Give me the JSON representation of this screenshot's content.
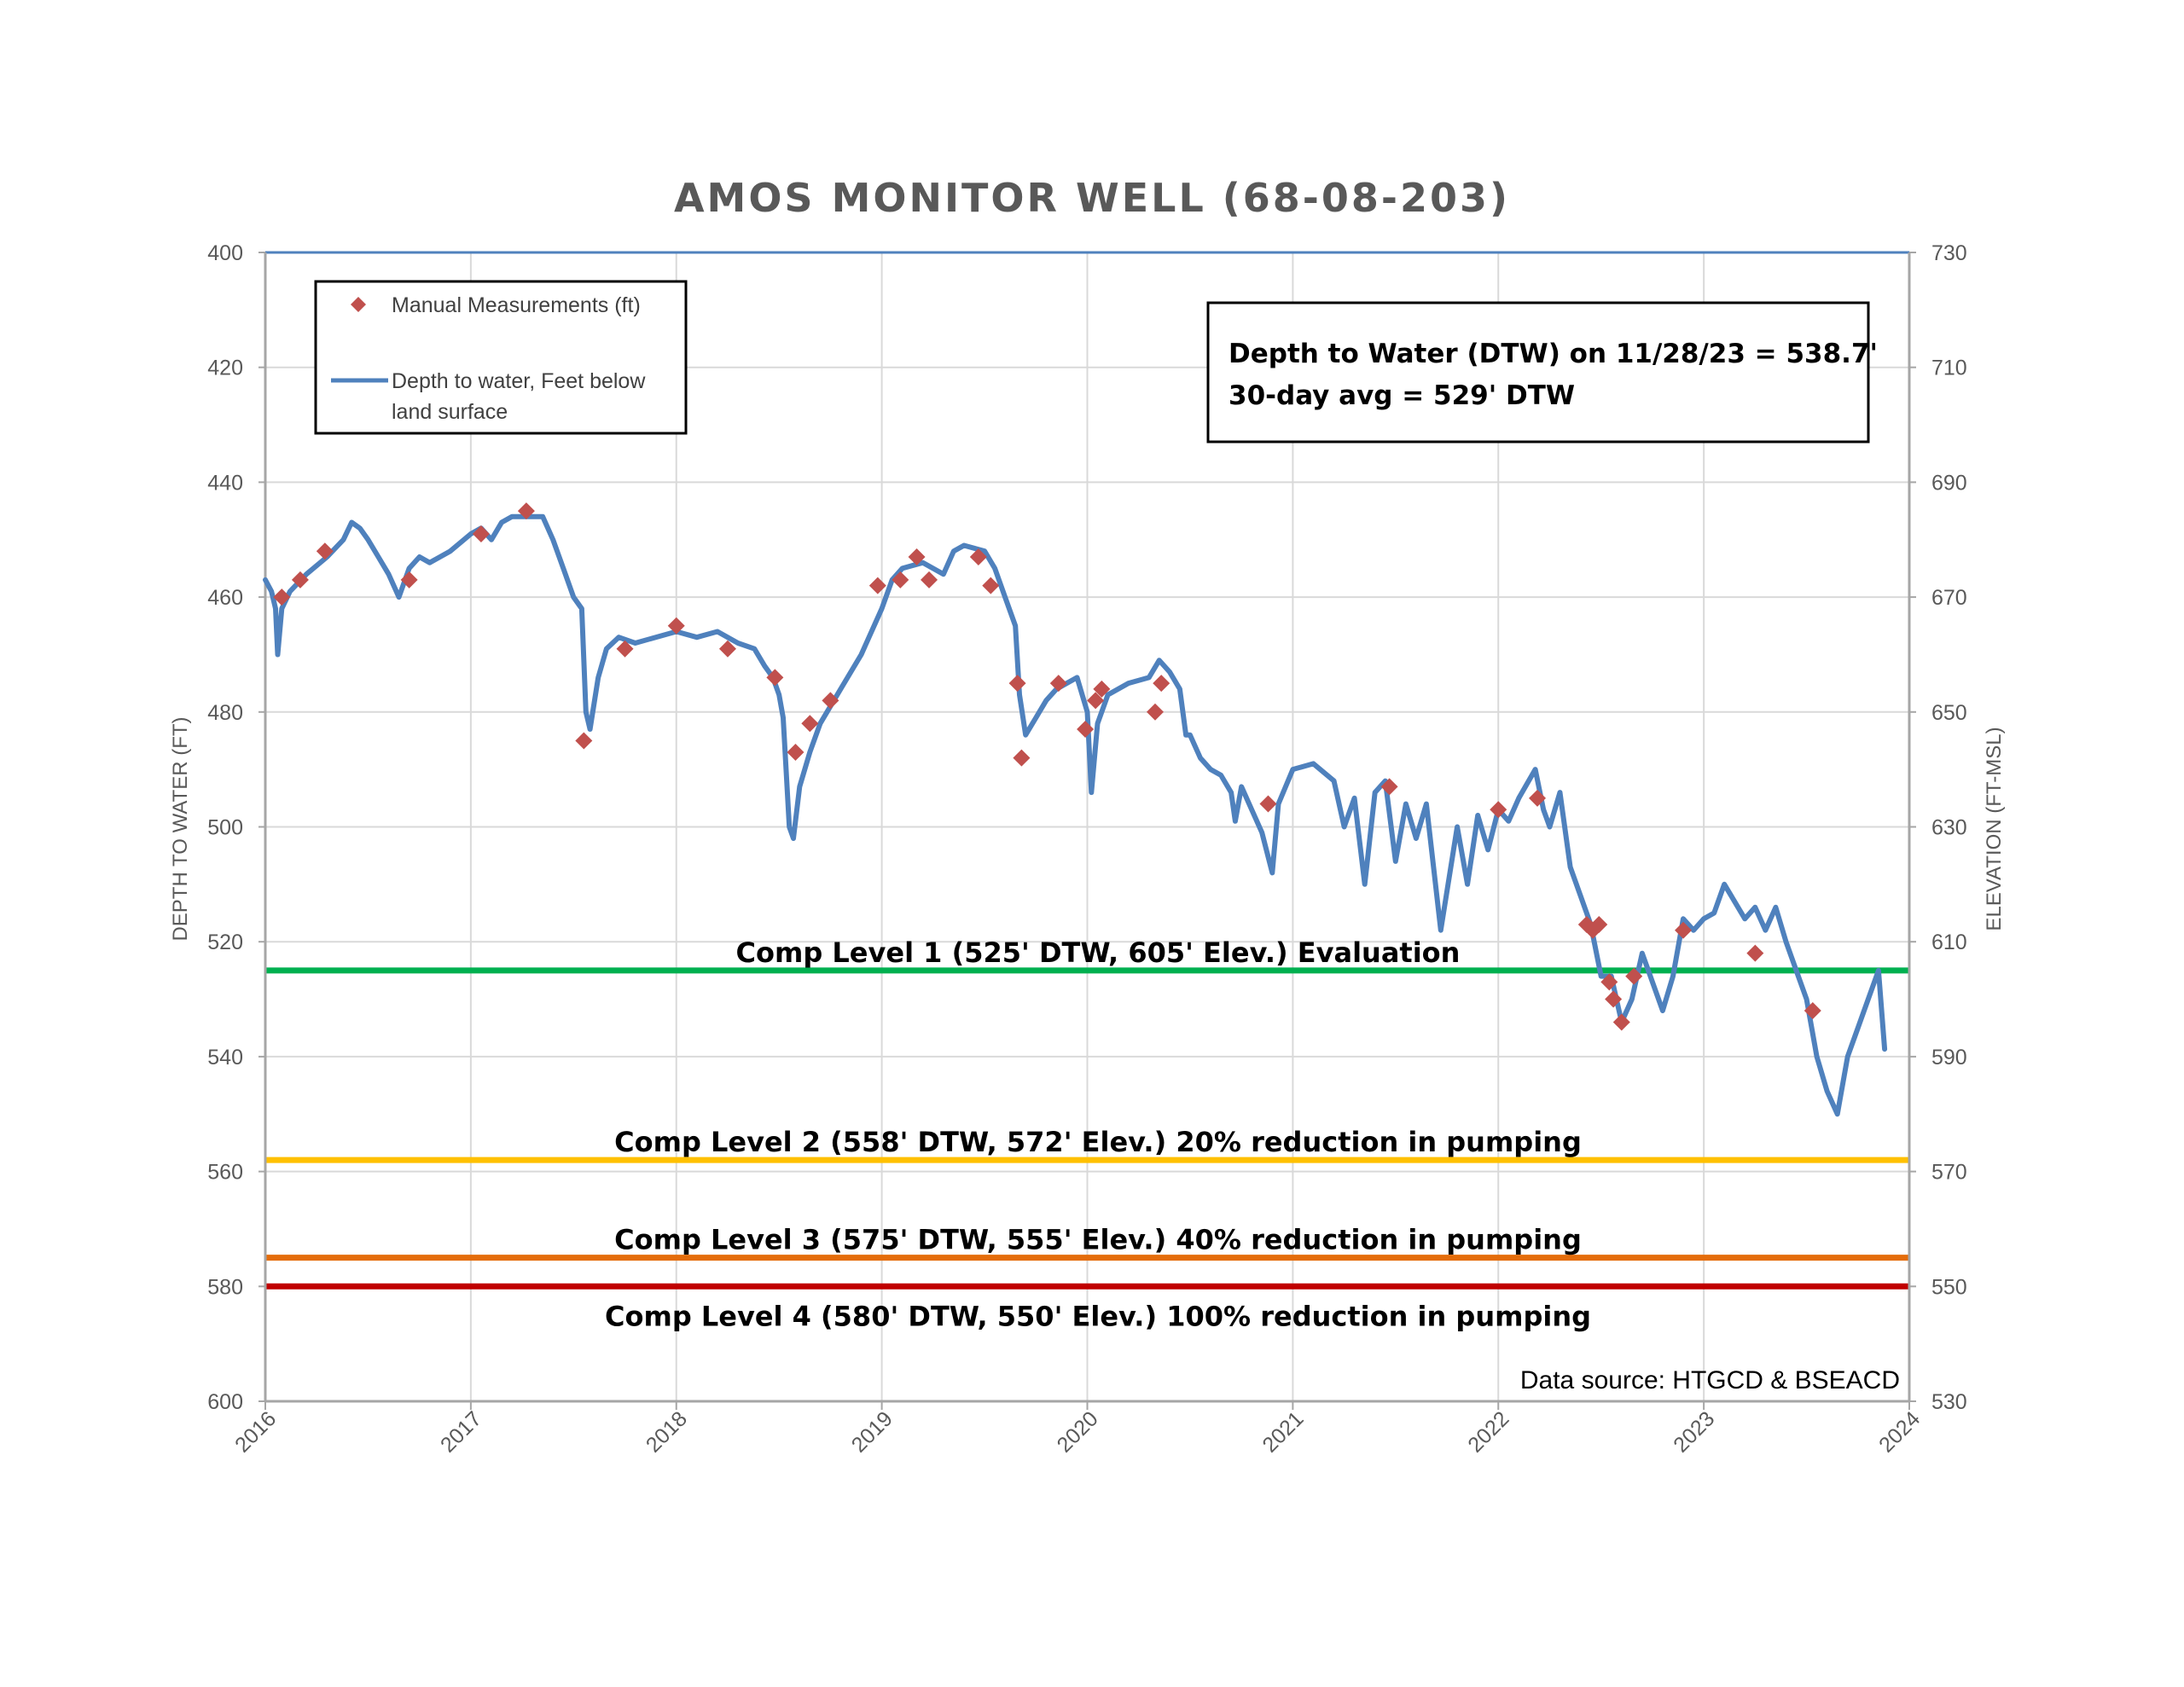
{
  "chart_data": {
    "type": "line",
    "title": "AMOS MONITOR WELL (68-08-203)",
    "ylabel": "DEPTH TO WATER (FT)",
    "ylabel_right": "ELEVATION (FT-MSL)",
    "ylim": [
      400,
      600
    ],
    "y_inverted": true,
    "yticks": [
      400,
      420,
      440,
      460,
      480,
      500,
      520,
      540,
      560,
      580,
      600
    ],
    "yticks_right": [
      730,
      710,
      690,
      670,
      650,
      630,
      610,
      590,
      570,
      550,
      530
    ],
    "xlim": [
      2016,
      2024
    ],
    "xticks": [
      "2016",
      "2017",
      "2018",
      "2019",
      "2020",
      "2021",
      "2022",
      "2023",
      "2024"
    ],
    "grid": true,
    "legend_position": "top-left",
    "legend": [
      {
        "label": "Manual Measurements (ft)",
        "marker": "diamond",
        "color": "#C0504D"
      },
      {
        "label": "Depth to water, Feet below land surface",
        "line1": "Depth to water, Feet below",
        "line2": "land surface",
        "color": "#4F81BD"
      }
    ],
    "annotation": {
      "line1": "Depth to Water (DTW) on 11/28/23 = 538.7'",
      "line2": "30-day avg = 529' DTW"
    },
    "source_text": "Data source: HTGCD & BSEACD",
    "comp_levels": [
      {
        "value": 525,
        "label": "Comp Level 1 (525' DTW, 605' Elev.) Evaluation",
        "color": "#00B050"
      },
      {
        "value": 558,
        "label": "Comp Level 2 (558' DTW, 572' Elev.) 20% reduction in pumping",
        "color": "#FFC000"
      },
      {
        "value": 575,
        "label": "Comp Level 3 (575' DTW, 555' Elev.) 40% reduction in pumping",
        "color": "#E46C0A"
      },
      {
        "value": 580,
        "label": "Comp Level 4 (580' DTW, 550' Elev.) 100% reduction in pumping",
        "color": "#C00000"
      }
    ],
    "series": [
      {
        "name": "Depth to water, Feet below land surface",
        "color": "#4F81BD",
        "points": [
          [
            2016.0,
            457
          ],
          [
            2016.03,
            459
          ],
          [
            2016.05,
            462
          ],
          [
            2016.06,
            470
          ],
          [
            2016.08,
            462
          ],
          [
            2016.12,
            459
          ],
          [
            2016.2,
            456
          ],
          [
            2016.3,
            453
          ],
          [
            2016.38,
            450
          ],
          [
            2016.42,
            447
          ],
          [
            2016.46,
            448
          ],
          [
            2016.5,
            450
          ],
          [
            2016.55,
            453
          ],
          [
            2016.6,
            456
          ],
          [
            2016.65,
            460
          ],
          [
            2016.7,
            455
          ],
          [
            2016.75,
            453
          ],
          [
            2016.8,
            454
          ],
          [
            2016.9,
            452
          ],
          [
            2017.0,
            449
          ],
          [
            2017.05,
            448
          ],
          [
            2017.1,
            450
          ],
          [
            2017.15,
            447
          ],
          [
            2017.2,
            446
          ],
          [
            2017.3,
            446
          ],
          [
            2017.35,
            446
          ],
          [
            2017.4,
            450
          ],
          [
            2017.45,
            455
          ],
          [
            2017.5,
            460
          ],
          [
            2017.54,
            462
          ],
          [
            2017.56,
            480
          ],
          [
            2017.58,
            483
          ],
          [
            2017.62,
            474
          ],
          [
            2017.66,
            469
          ],
          [
            2017.72,
            467
          ],
          [
            2017.8,
            468
          ],
          [
            2017.9,
            467
          ],
          [
            2018.0,
            466
          ],
          [
            2018.1,
            467
          ],
          [
            2018.2,
            466
          ],
          [
            2018.3,
            468
          ],
          [
            2018.38,
            469
          ],
          [
            2018.43,
            472
          ],
          [
            2018.47,
            474
          ],
          [
            2018.5,
            477
          ],
          [
            2018.52,
            481
          ],
          [
            2018.55,
            500
          ],
          [
            2018.57,
            502
          ],
          [
            2018.6,
            493
          ],
          [
            2018.65,
            487
          ],
          [
            2018.7,
            482
          ],
          [
            2018.8,
            476
          ],
          [
            2018.9,
            470
          ],
          [
            2019.0,
            462
          ],
          [
            2019.05,
            457
          ],
          [
            2019.1,
            455
          ],
          [
            2019.2,
            454
          ],
          [
            2019.3,
            456
          ],
          [
            2019.35,
            452
          ],
          [
            2019.4,
            451
          ],
          [
            2019.5,
            452
          ],
          [
            2019.55,
            455
          ],
          [
            2019.6,
            460
          ],
          [
            2019.65,
            465
          ],
          [
            2019.67,
            477
          ],
          [
            2019.7,
            484
          ],
          [
            2019.75,
            481
          ],
          [
            2019.8,
            478
          ],
          [
            2019.85,
            476
          ],
          [
            2019.9,
            475
          ],
          [
            2019.95,
            474
          ],
          [
            2020.0,
            480
          ],
          [
            2020.02,
            494
          ],
          [
            2020.05,
            482
          ],
          [
            2020.1,
            477
          ],
          [
            2020.2,
            475
          ],
          [
            2020.3,
            474
          ],
          [
            2020.35,
            471
          ],
          [
            2020.4,
            473
          ],
          [
            2020.45,
            476
          ],
          [
            2020.48,
            484
          ],
          [
            2020.5,
            484
          ],
          [
            2020.55,
            488
          ],
          [
            2020.6,
            490
          ],
          [
            2020.65,
            491
          ],
          [
            2020.7,
            494
          ],
          [
            2020.72,
            499
          ],
          [
            2020.75,
            493
          ],
          [
            2020.8,
            497
          ],
          [
            2020.85,
            501
          ],
          [
            2020.9,
            508
          ],
          [
            2020.93,
            496
          ],
          [
            2021.0,
            490
          ],
          [
            2021.1,
            489
          ],
          [
            2021.2,
            492
          ],
          [
            2021.25,
            500
          ],
          [
            2021.3,
            495
          ],
          [
            2021.35,
            510
          ],
          [
            2021.4,
            494
          ],
          [
            2021.45,
            492
          ],
          [
            2021.5,
            506
          ],
          [
            2021.55,
            496
          ],
          [
            2021.6,
            502
          ],
          [
            2021.65,
            496
          ],
          [
            2021.72,
            518
          ],
          [
            2021.8,
            500
          ],
          [
            2021.85,
            510
          ],
          [
            2021.9,
            498
          ],
          [
            2021.95,
            504
          ],
          [
            2022.0,
            497
          ],
          [
            2022.05,
            499
          ],
          [
            2022.1,
            495
          ],
          [
            2022.18,
            490
          ],
          [
            2022.22,
            497
          ],
          [
            2022.25,
            500
          ],
          [
            2022.3,
            494
          ],
          [
            2022.35,
            507
          ],
          [
            2022.4,
            512
          ],
          [
            2022.45,
            517
          ],
          [
            2022.5,
            526
          ],
          [
            2022.55,
            526
          ],
          [
            2022.6,
            534
          ],
          [
            2022.65,
            530
          ],
          [
            2022.7,
            522
          ],
          [
            2022.8,
            532
          ],
          [
            2022.85,
            526
          ],
          [
            2022.9,
            516
          ],
          [
            2022.95,
            518
          ],
          [
            2023.0,
            516
          ],
          [
            2023.05,
            515
          ],
          [
            2023.1,
            510
          ],
          [
            2023.2,
            516
          ],
          [
            2023.25,
            514
          ],
          [
            2023.3,
            518
          ],
          [
            2023.35,
            514
          ],
          [
            2023.4,
            520
          ],
          [
            2023.45,
            525
          ],
          [
            2023.5,
            530
          ],
          [
            2023.55,
            540
          ],
          [
            2023.6,
            546
          ],
          [
            2023.65,
            550
          ],
          [
            2023.7,
            540
          ],
          [
            2023.75,
            535
          ],
          [
            2023.8,
            530
          ],
          [
            2023.85,
            525
          ],
          [
            2023.88,
            538.7
          ]
        ]
      },
      {
        "name": "Manual Measurements (ft)",
        "color": "#C0504D",
        "points": [
          [
            2016.08,
            460
          ],
          [
            2016.17,
            457
          ],
          [
            2016.29,
            452
          ],
          [
            2016.7,
            457
          ],
          [
            2017.05,
            449
          ],
          [
            2017.27,
            445
          ],
          [
            2017.55,
            485
          ],
          [
            2017.75,
            469
          ],
          [
            2018.0,
            465
          ],
          [
            2018.25,
            469
          ],
          [
            2018.48,
            474
          ],
          [
            2018.58,
            487
          ],
          [
            2018.65,
            482
          ],
          [
            2018.75,
            478
          ],
          [
            2018.98,
            458
          ],
          [
            2019.09,
            457
          ],
          [
            2019.17,
            453
          ],
          [
            2019.23,
            457
          ],
          [
            2019.47,
            453
          ],
          [
            2019.53,
            458
          ],
          [
            2019.66,
            475
          ],
          [
            2019.68,
            488
          ],
          [
            2019.86,
            475
          ],
          [
            2019.99,
            483
          ],
          [
            2020.04,
            478
          ],
          [
            2020.07,
            476
          ],
          [
            2020.33,
            480
          ],
          [
            2020.36,
            475
          ],
          [
            2020.88,
            496
          ],
          [
            2021.47,
            493
          ],
          [
            2022.0,
            497
          ],
          [
            2022.19,
            495
          ],
          [
            2022.43,
            517
          ],
          [
            2022.46,
            518
          ],
          [
            2022.49,
            517
          ],
          [
            2022.54,
            527
          ],
          [
            2022.56,
            530
          ],
          [
            2022.6,
            534
          ],
          [
            2022.66,
            526
          ],
          [
            2022.9,
            518
          ],
          [
            2023.25,
            522
          ],
          [
            2023.53,
            532
          ]
        ]
      }
    ]
  }
}
